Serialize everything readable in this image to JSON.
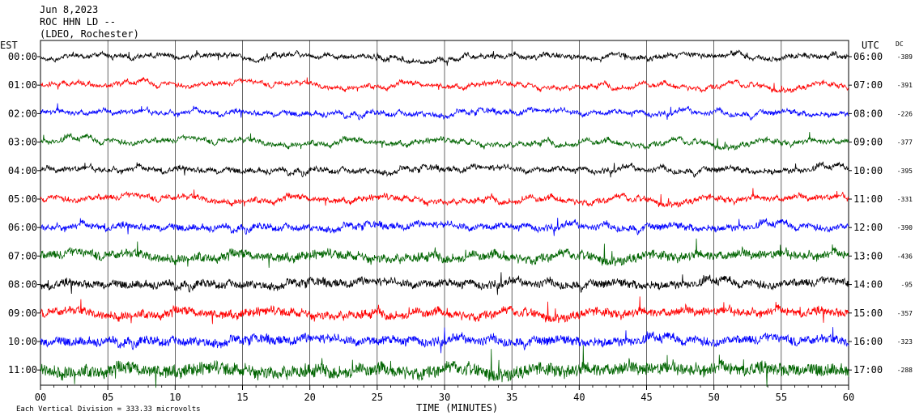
{
  "chart_data": {
    "type": "line",
    "title_lines": [
      "Jun 8,2023",
      "ROC HHN LD --",
      "(LDEO, Rochester)"
    ],
    "left_axis_title": "EST",
    "right_axis_title": "UTC",
    "dc_title": "DC",
    "xlabel": "TIME (MINUTES)",
    "footnote": "Each Vertical Division =  333.33 microvolts",
    "x_ticks": [
      "00",
      "05",
      "10",
      "15",
      "20",
      "25",
      "30",
      "35",
      "40",
      "45",
      "50",
      "55",
      "60"
    ],
    "xlim": [
      0,
      60
    ],
    "series_colors": [
      "#000000",
      "#ff0000",
      "#0000ff",
      "#006400"
    ],
    "rows": [
      {
        "est": "00:00",
        "utc": "06:00",
        "dc": "-389",
        "color": "#000000",
        "noise": 0.7
      },
      {
        "est": "01:00",
        "utc": "07:00",
        "dc": "-391",
        "color": "#ff0000",
        "noise": 0.65
      },
      {
        "est": "02:00",
        "utc": "08:00",
        "dc": "-226",
        "color": "#0000ff",
        "noise": 0.75
      },
      {
        "est": "03:00",
        "utc": "09:00",
        "dc": "-377",
        "color": "#006400",
        "noise": 0.8
      },
      {
        "est": "04:00",
        "utc": "10:00",
        "dc": "-395",
        "color": "#000000",
        "noise": 0.85
      },
      {
        "est": "05:00",
        "utc": "11:00",
        "dc": "-331",
        "color": "#ff0000",
        "noise": 0.9
      },
      {
        "est": "06:00",
        "utc": "12:00",
        "dc": "-390",
        "color": "#0000ff",
        "noise": 1.1
      },
      {
        "est": "07:00",
        "utc": "13:00",
        "dc": "-436",
        "color": "#006400",
        "noise": 1.6
      },
      {
        "est": "08:00",
        "utc": "14:00",
        "dc": "-95",
        "color": "#000000",
        "noise": 1.4
      },
      {
        "est": "09:00",
        "utc": "15:00",
        "dc": "-357",
        "color": "#ff0000",
        "noise": 1.5
      },
      {
        "est": "10:00",
        "utc": "16:00",
        "dc": "-323",
        "color": "#0000ff",
        "noise": 1.6
      },
      {
        "est": "11:00",
        "utc": "17:00",
        "dc": "-288",
        "color": "#006400",
        "noise": 2.4
      }
    ]
  }
}
